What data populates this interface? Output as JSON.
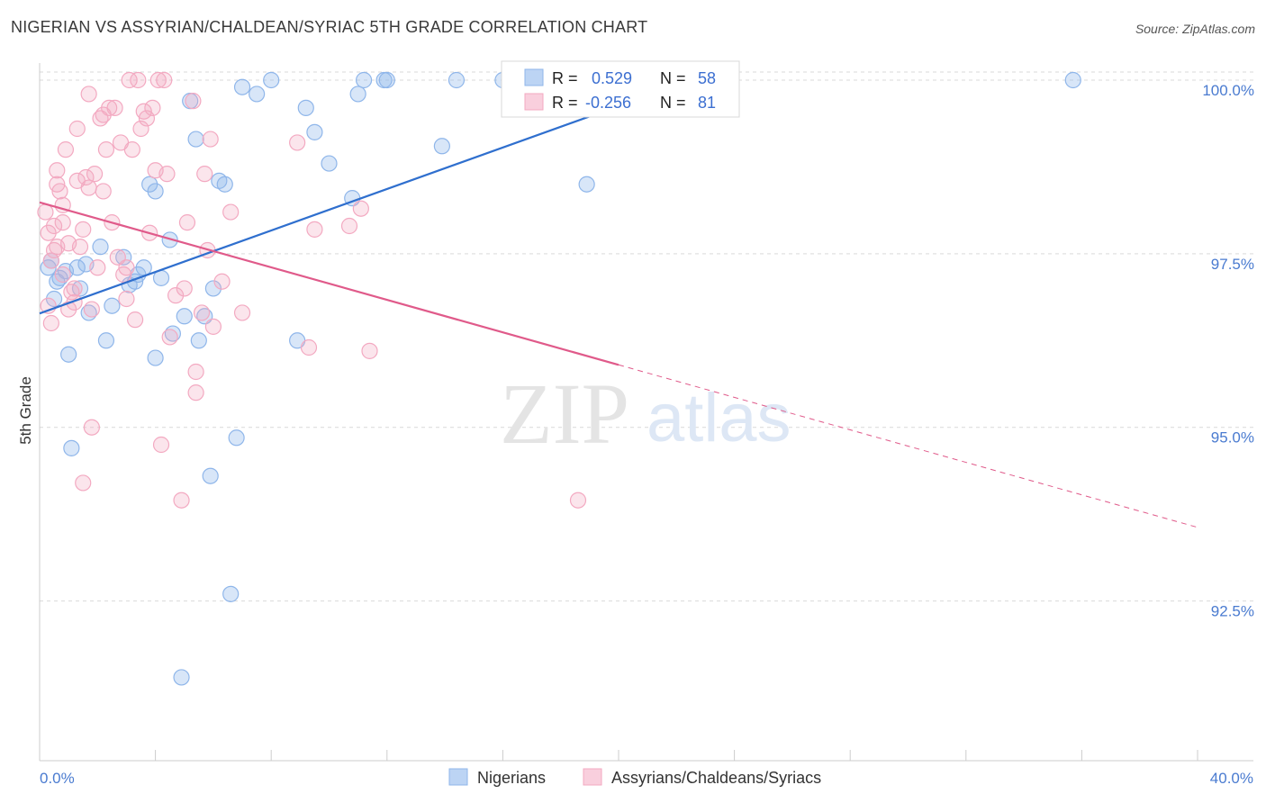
{
  "header": {
    "title": "NIGERIAN VS ASSYRIAN/CHALDEAN/SYRIAC 5TH GRADE CORRELATION CHART",
    "source": "Source: ZipAtlas.com"
  },
  "watermark": {
    "zip": "ZIP",
    "atlas": "atlas"
  },
  "stats_box": {
    "rows": [
      {
        "r_label": "R =",
        "r_value": "0.529",
        "n_label": "N =",
        "n_value": "58",
        "color": "#8fb6ea"
      },
      {
        "r_label": "R =",
        "r_value": "-0.256",
        "n_label": "N =",
        "n_value": "81",
        "color": "#f3a9c1"
      }
    ]
  },
  "legend": {
    "items": [
      {
        "label": "Nigerians",
        "color": "#8fb6ea"
      },
      {
        "label": "Assyrians/Chaldeans/Syriacs",
        "color": "#f3a9c1"
      }
    ]
  },
  "chart_data": {
    "type": "scatter",
    "title": "NIGERIAN VS ASSYRIAN/CHALDEAN/SYRIAC 5TH GRADE CORRELATION CHART",
    "xlabel": "",
    "ylabel": "5th Grade",
    "xlim": [
      0,
      40
    ],
    "ylim": [
      90.2,
      100.35
    ],
    "x_tick_labels": [
      {
        "value": 0,
        "label": "0.0%"
      },
      {
        "value": 40,
        "label": "40.0%"
      }
    ],
    "y_tick_labels": [
      {
        "value": 100,
        "label": "100.0%"
      },
      {
        "value": 97.5,
        "label": "97.5%"
      },
      {
        "value": 95,
        "label": "95.0%"
      },
      {
        "value": 92.5,
        "label": "92.5%"
      }
    ],
    "grid": true,
    "legend_position": "bottom-center",
    "series": [
      {
        "name": "Nigerians",
        "color": "#8fb6ea",
        "line_color": "#2f6fce",
        "trend": {
          "x0": 0,
          "y0": 96.64,
          "x1": 22.5,
          "y1": 100.0
        },
        "points": [
          [
            0.3,
            97.3
          ],
          [
            0.5,
            96.85
          ],
          [
            0.6,
            97.1
          ],
          [
            0.7,
            97.15
          ],
          [
            0.9,
            97.25
          ],
          [
            1.0,
            96.05
          ],
          [
            1.1,
            94.7
          ],
          [
            1.3,
            97.3
          ],
          [
            1.4,
            97.0
          ],
          [
            1.6,
            97.35
          ],
          [
            1.7,
            96.65
          ],
          [
            2.1,
            97.6
          ],
          [
            2.3,
            96.25
          ],
          [
            2.5,
            96.75
          ],
          [
            2.9,
            97.45
          ],
          [
            3.1,
            97.05
          ],
          [
            3.3,
            97.1
          ],
          [
            3.4,
            97.2
          ],
          [
            3.6,
            97.3
          ],
          [
            3.8,
            98.5
          ],
          [
            4.0,
            98.4
          ],
          [
            4.0,
            96.0
          ],
          [
            4.2,
            97.15
          ],
          [
            4.5,
            97.7
          ],
          [
            4.6,
            96.35
          ],
          [
            5.0,
            96.6
          ],
          [
            5.2,
            99.7
          ],
          [
            5.4,
            99.15
          ],
          [
            5.5,
            96.25
          ],
          [
            5.7,
            96.6
          ],
          [
            5.9,
            94.3
          ],
          [
            6.0,
            97.0
          ],
          [
            6.2,
            98.55
          ],
          [
            6.4,
            98.5
          ],
          [
            6.6,
            92.6
          ],
          [
            6.8,
            94.85
          ],
          [
            7.0,
            99.9
          ],
          [
            7.5,
            99.8
          ],
          [
            8.0,
            100.0
          ],
          [
            8.9,
            96.25
          ],
          [
            9.2,
            99.6
          ],
          [
            9.5,
            99.25
          ],
          [
            10.0,
            98.8
          ],
          [
            10.8,
            98.3
          ],
          [
            11.0,
            99.8
          ],
          [
            11.2,
            100.0
          ],
          [
            11.9,
            100.0
          ],
          [
            12.0,
            100.0
          ],
          [
            13.9,
            99.05
          ],
          [
            14.4,
            100.0
          ],
          [
            16.0,
            100.0
          ],
          [
            17.0,
            100.0
          ],
          [
            18.0,
            100.0
          ],
          [
            19.0,
            100.0
          ],
          [
            18.9,
            98.5
          ],
          [
            35.7,
            100.0
          ],
          [
            4.9,
            91.4
          ],
          [
            0.4,
            97.4
          ]
        ]
      },
      {
        "name": "Assyrians/Chaldeans/Syriacs",
        "color": "#f3a9c1",
        "line_color": "#e05a8a",
        "trend": {
          "x0": 0,
          "y0": 98.24,
          "x1": 20.0,
          "y1": 95.9
        },
        "trend_dashed": {
          "x0": 20.0,
          "y0": 95.9,
          "x1": 40.0,
          "y1": 93.56
        },
        "points": [
          [
            0.2,
            98.1
          ],
          [
            0.3,
            97.8
          ],
          [
            0.3,
            96.75
          ],
          [
            0.4,
            97.4
          ],
          [
            0.4,
            96.5
          ],
          [
            0.5,
            97.55
          ],
          [
            0.5,
            97.9
          ],
          [
            0.6,
            98.7
          ],
          [
            0.6,
            98.5
          ],
          [
            0.7,
            98.4
          ],
          [
            0.8,
            97.95
          ],
          [
            0.8,
            98.2
          ],
          [
            0.9,
            99.0
          ],
          [
            1.0,
            97.65
          ],
          [
            1.0,
            96.7
          ],
          [
            1.1,
            96.95
          ],
          [
            1.2,
            96.8
          ],
          [
            1.3,
            98.55
          ],
          [
            1.3,
            99.3
          ],
          [
            1.4,
            97.6
          ],
          [
            1.5,
            97.85
          ],
          [
            1.6,
            98.6
          ],
          [
            1.7,
            99.8
          ],
          [
            1.7,
            98.45
          ],
          [
            1.8,
            96.7
          ],
          [
            1.8,
            95.0
          ],
          [
            1.9,
            98.65
          ],
          [
            2.0,
            97.3
          ],
          [
            2.1,
            99.45
          ],
          [
            2.2,
            99.5
          ],
          [
            2.3,
            99.0
          ],
          [
            2.4,
            99.6
          ],
          [
            2.5,
            97.95
          ],
          [
            2.6,
            99.6
          ],
          [
            2.7,
            97.45
          ],
          [
            2.8,
            99.1
          ],
          [
            2.9,
            97.2
          ],
          [
            3.0,
            96.85
          ],
          [
            3.1,
            100.0
          ],
          [
            3.2,
            99.0
          ],
          [
            3.3,
            96.55
          ],
          [
            3.4,
            100.0
          ],
          [
            3.5,
            99.3
          ],
          [
            3.6,
            99.55
          ],
          [
            3.7,
            99.45
          ],
          [
            3.8,
            97.8
          ],
          [
            3.9,
            99.6
          ],
          [
            4.0,
            98.7
          ],
          [
            4.1,
            100.0
          ],
          [
            4.3,
            100.0
          ],
          [
            4.4,
            98.65
          ],
          [
            4.5,
            96.3
          ],
          [
            4.7,
            96.9
          ],
          [
            4.9,
            93.95
          ],
          [
            5.1,
            97.95
          ],
          [
            5.3,
            99.7
          ],
          [
            5.4,
            95.8
          ],
          [
            5.6,
            96.65
          ],
          [
            5.7,
            98.65
          ],
          [
            5.8,
            97.55
          ],
          [
            5.9,
            99.15
          ],
          [
            6.0,
            96.45
          ],
          [
            6.3,
            97.1
          ],
          [
            6.6,
            98.1
          ],
          [
            7.0,
            96.65
          ],
          [
            8.9,
            99.1
          ],
          [
            9.3,
            96.15
          ],
          [
            9.5,
            97.85
          ],
          [
            10.7,
            97.9
          ],
          [
            11.1,
            98.15
          ],
          [
            11.4,
            96.1
          ],
          [
            18.6,
            93.95
          ],
          [
            1.5,
            94.2
          ],
          [
            4.2,
            94.75
          ],
          [
            5.4,
            95.5
          ],
          [
            0.8,
            97.2
          ],
          [
            2.2,
            98.4
          ],
          [
            3.0,
            97.3
          ],
          [
            1.2,
            97.0
          ],
          [
            0.6,
            97.6
          ],
          [
            5.0,
            97.0
          ]
        ]
      }
    ]
  }
}
